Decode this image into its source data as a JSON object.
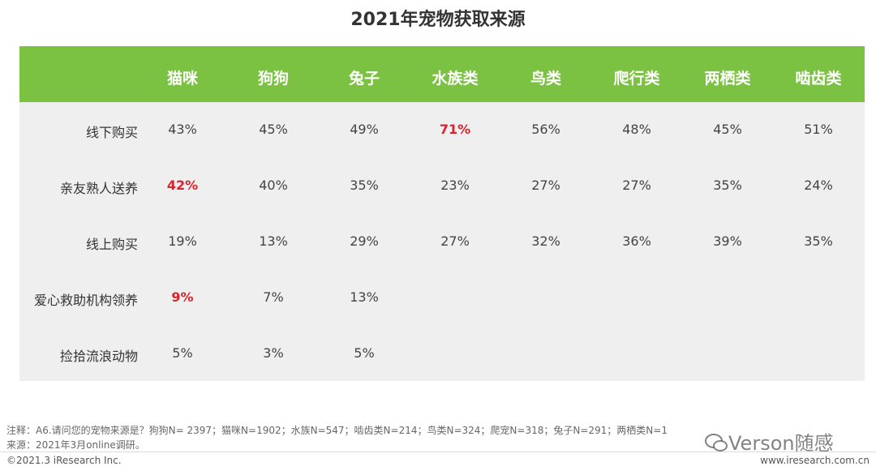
{
  "title": "2021年宠物获取来源",
  "table": {
    "columns": [
      "猫咪",
      "狗狗",
      "兔子",
      "水族类",
      "鸟类",
      "爬行类",
      "两栖类",
      "啮齿类"
    ],
    "rows": [
      {
        "label": "线下购买",
        "cells": [
          "43%",
          "45%",
          "49%",
          {
            "text": "71%",
            "color": "#d9232d"
          },
          "56%",
          "48%",
          "45%",
          "51%"
        ]
      },
      {
        "label": "亲友熟人送养",
        "cells": [
          {
            "text": "42%",
            "color": "#d9232d"
          },
          "40%",
          "35%",
          "23%",
          "27%",
          "27%",
          "35%",
          "24%"
        ]
      },
      {
        "label": "线上购买",
        "cells": [
          "19%",
          "13%",
          "29%",
          "27%",
          "32%",
          "36%",
          "39%",
          "35%"
        ]
      },
      {
        "label": "爱心救助机构领养",
        "cells": [
          {
            "text": "9%",
            "color": "#d9232d"
          },
          "7%",
          "13%"
        ]
      },
      {
        "label": "捡拾流浪动物",
        "cells": [
          "5%",
          "3%",
          "5%"
        ]
      }
    ]
  },
  "notes": [
    "注释：A6.请问您的宠物来源是？狗狗N= 2397；猫咪N=1902；水族N=547；啮齿类N=214；鸟类N=324；爬宠N=318；兔子N=291；两栖类N=1",
    "来源：2021年3月online调研。"
  ],
  "footer": {
    "copyright": "©2021.3 iResearch Inc.",
    "website": "www.iresearch.com.cn"
  },
  "watermark": "Verson随感"
}
